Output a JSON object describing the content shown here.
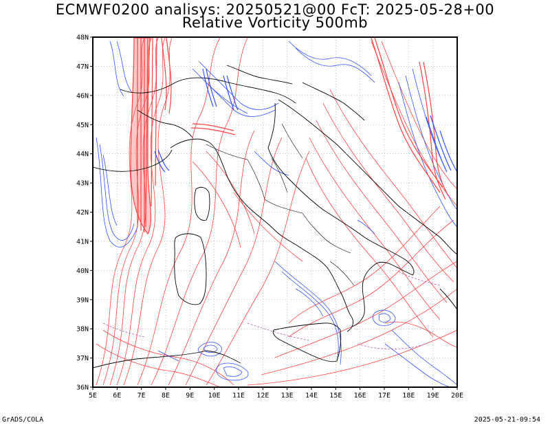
{
  "title": {
    "line1": "ECMWF0200 analisys: 20250521@00 FcT: 2025-05-28+00",
    "line2": "Relative Vorticity 500mb"
  },
  "footer": {
    "left": "GrADS/COLA",
    "right": "2025-05-21-09:54"
  },
  "map": {
    "lat_labels": [
      "48N",
      "47N",
      "46N",
      "45N",
      "44N",
      "43N",
      "42N",
      "41N",
      "40N",
      "39N",
      "38N",
      "37N",
      "36N"
    ],
    "lon_labels": [
      "5E",
      "6E",
      "7E",
      "8E",
      "9E",
      "10E",
      "11E",
      "12E",
      "13E",
      "14E",
      "15E",
      "16E",
      "17E",
      "18E",
      "19E",
      "20E"
    ],
    "lon_range": [
      5,
      20
    ],
    "lat_range": [
      36,
      48
    ],
    "colors": {
      "positive_contours": "#ff4040",
      "negative_contours": "#3050ff",
      "zero_contours": "#b060b0",
      "coastlines": "#000000"
    }
  }
}
